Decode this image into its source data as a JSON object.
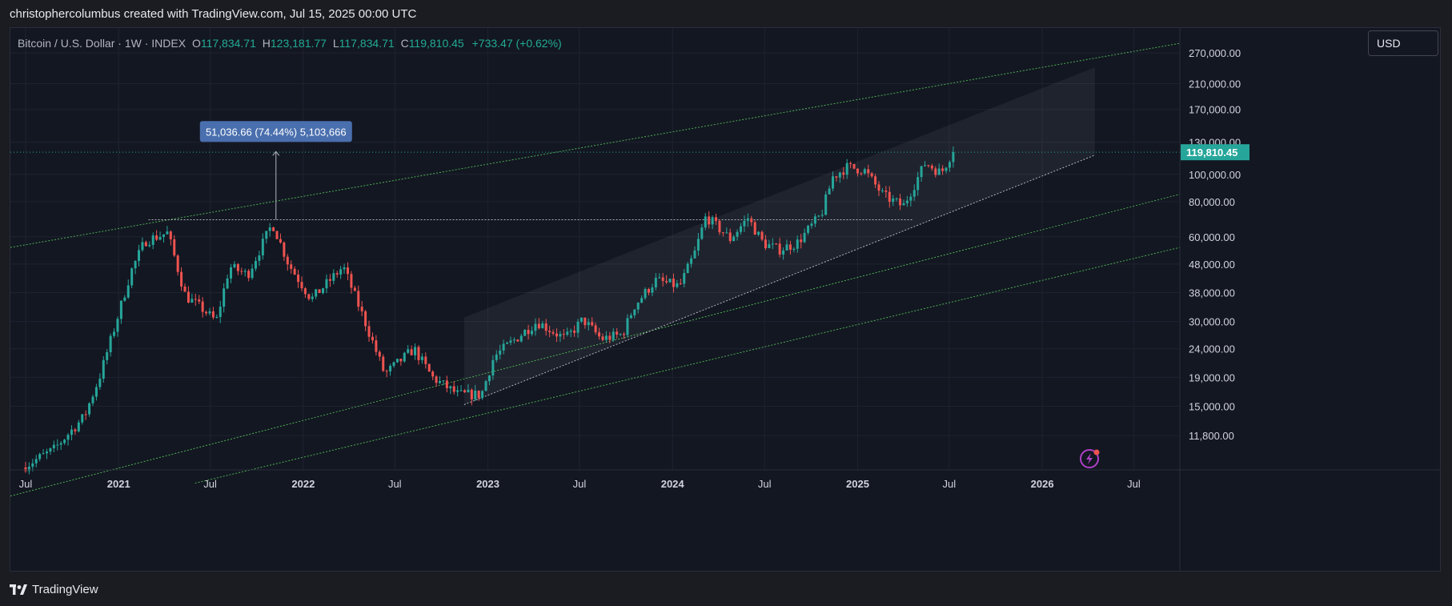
{
  "header": {
    "caption": "christophercolumbus created with TradingView.com, Jul 15, 2025 00:00 UTC"
  },
  "legend": {
    "symbol": "Bitcoin / U.S. Dollar · 1W · INDEX",
    "open_label": "O",
    "open": "117,834.71",
    "high_label": "H",
    "high": "123,181.77",
    "low_label": "L",
    "low": "117,834.71",
    "close_label": "C",
    "close": "119,810.45",
    "change": "+733.47 (+0.62%)"
  },
  "currency": "USD",
  "measure_label": "51,036.66 (74.44%) 5,103,666",
  "last_price_label": "119,810.45",
  "footer": {
    "brand": "TradingView"
  },
  "colors": {
    "up": "#26a69a",
    "down": "#ef5350",
    "channel": "#4caf50",
    "accent": "#4a6fae",
    "background": "#131722"
  },
  "chart_data": {
    "type": "candlestick",
    "symbol": "BTCUSD",
    "timeframe": "1W",
    "y_scale": "log",
    "ylim": [
      10500,
      300000
    ],
    "y_ticks": [
      11800,
      15000,
      19000,
      24000,
      30000,
      38000,
      48000,
      60000,
      80000,
      100000,
      130000,
      170000,
      210000,
      270000
    ],
    "y_tick_labels": [
      "11,800.00",
      "15,000.00",
      "19,000.00",
      "24,000.00",
      "30,000.00",
      "38,000.00",
      "48,000.00",
      "60,000.00",
      "80,000.00",
      "100,000.00",
      "130,000.00",
      "170,000.00",
      "210,000.00",
      "270,000.00"
    ],
    "x_range": [
      "2020-06-01",
      "2026-09-30"
    ],
    "x_ticks": [
      "2020-07-01",
      "2021-01-01",
      "2021-07-01",
      "2022-01-01",
      "2022-07-01",
      "2023-01-01",
      "2023-07-01",
      "2024-01-01",
      "2024-07-01",
      "2025-01-01",
      "2025-07-01",
      "2026-01-01",
      "2026-07-01"
    ],
    "x_tick_labels": [
      "Jul",
      "2021",
      "Jul",
      "2022",
      "Jul",
      "2023",
      "Jul",
      "2024",
      "Jul",
      "2025",
      "Jul",
      "2026",
      "Jul"
    ],
    "last_price": 119810.45,
    "price_path": [
      [
        "2020-07-01",
        9100
      ],
      [
        "2020-09-01",
        10500
      ],
      [
        "2020-11-01",
        13800
      ],
      [
        "2020-12-01",
        19000
      ],
      [
        "2021-01-01",
        29000
      ],
      [
        "2021-02-01",
        45000
      ],
      [
        "2021-03-01",
        58000
      ],
      [
        "2021-04-15",
        62000
      ],
      [
        "2021-05-20",
        37000
      ],
      [
        "2021-06-25",
        33000
      ],
      [
        "2021-07-20",
        30000
      ],
      [
        "2021-08-15",
        47000
      ],
      [
        "2021-09-20",
        44000
      ],
      [
        "2021-11-08",
        67000
      ],
      [
        "2021-12-10",
        48000
      ],
      [
        "2022-01-24",
        36000
      ],
      [
        "2022-03-28",
        47000
      ],
      [
        "2022-05-10",
        30000
      ],
      [
        "2022-06-18",
        19500
      ],
      [
        "2022-08-15",
        24000
      ],
      [
        "2022-09-20",
        19000
      ],
      [
        "2022-11-10",
        16500
      ],
      [
        "2022-12-26",
        16500
      ],
      [
        "2023-01-20",
        22500
      ],
      [
        "2023-03-20",
        27500
      ],
      [
        "2023-04-15",
        30000
      ],
      [
        "2023-06-10",
        26000
      ],
      [
        "2023-07-15",
        30500
      ],
      [
        "2023-08-20",
        26000
      ],
      [
        "2023-10-01",
        27000
      ],
      [
        "2023-10-24",
        34000
      ],
      [
        "2023-12-05",
        42000
      ],
      [
        "2024-01-22",
        40000
      ],
      [
        "2024-02-20",
        52000
      ],
      [
        "2024-03-14",
        71000
      ],
      [
        "2024-05-01",
        59000
      ],
      [
        "2024-06-05",
        70000
      ],
      [
        "2024-07-05",
        57000
      ],
      [
        "2024-08-05",
        54000
      ],
      [
        "2024-09-10",
        57000
      ],
      [
        "2024-10-28",
        72000
      ],
      [
        "2024-11-20",
        98000
      ],
      [
        "2024-12-17",
        106000
      ],
      [
        "2025-01-20",
        104000
      ],
      [
        "2025-02-28",
        84000
      ],
      [
        "2025-04-08",
        77000
      ],
      [
        "2025-05-22",
        110000
      ],
      [
        "2025-06-22",
        101000
      ],
      [
        "2025-07-14",
        119810
      ]
    ],
    "annotations": [
      {
        "type": "channel_line",
        "style": "dotted",
        "color": "#4caf50",
        "from": [
          "2020-06-01",
          55000
        ],
        "to": [
          "2026-09-30",
          292000
        ]
      },
      {
        "type": "channel_line",
        "style": "dotted",
        "color": "#4caf50",
        "from": [
          "2020-06-01",
          7200
        ],
        "to": [
          "2026-09-30",
          85000
        ]
      },
      {
        "type": "channel_line",
        "style": "dotted",
        "color": "#4caf50",
        "from": [
          "2021-06-01",
          8000
        ],
        "to": [
          "2026-09-30",
          55000
        ]
      },
      {
        "type": "trend_line",
        "style": "dotted",
        "color": "#b2b5be",
        "from": [
          "2022-11-15",
          15200
        ],
        "to": [
          "2026-04-15",
          117000
        ]
      },
      {
        "type": "horizontal_line",
        "style": "dotted",
        "color": "#b2b5be",
        "price": 69000,
        "from": "2021-03-01",
        "to": "2025-04-20"
      },
      {
        "type": "price_line",
        "style": "dotted",
        "color": "#26a69a",
        "price": 119810.45
      },
      {
        "type": "measure_arrow",
        "date": "2021-11-08",
        "from": 69000,
        "to": 120500
      },
      {
        "type": "projection_band",
        "corners": [
          [
            "2022-11-15",
            15200
          ],
          [
            "2022-11-15",
            31000
          ],
          [
            "2026-04-15",
            240000
          ],
          [
            "2026-04-15",
            117000
          ]
        ]
      }
    ]
  }
}
